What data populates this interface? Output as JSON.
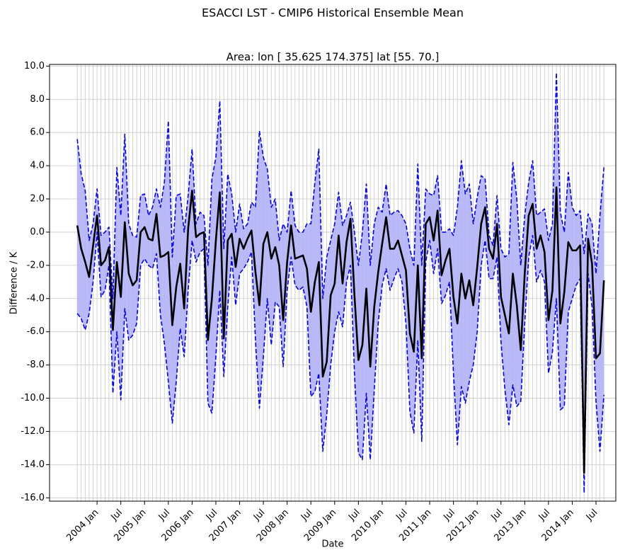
{
  "chart_data": {
    "type": "line",
    "title": "ESACCI LST - CMIP6 Historical Ensemble Mean",
    "subtitle": "Area: lon [ 35.625 174.375] lat [55. 70.]",
    "xlabel": "Date",
    "ylabel": "Difference / K",
    "x": [
      "2003-08",
      "2003-09",
      "2003-10",
      "2003-11",
      "2003-12",
      "2004-01",
      "2004-02",
      "2004-03",
      "2004-04",
      "2004-05",
      "2004-06",
      "2004-07",
      "2004-08",
      "2004-09",
      "2004-10",
      "2004-11",
      "2004-12",
      "2005-01",
      "2005-02",
      "2005-03",
      "2005-04",
      "2005-05",
      "2005-06",
      "2005-07",
      "2005-08",
      "2005-09",
      "2005-10",
      "2005-11",
      "2005-12",
      "2006-01",
      "2006-02",
      "2006-03",
      "2006-04",
      "2006-05",
      "2006-06",
      "2006-07",
      "2006-08",
      "2006-09",
      "2006-10",
      "2006-11",
      "2006-12",
      "2007-01",
      "2007-02",
      "2007-03",
      "2007-04",
      "2007-05",
      "2007-06",
      "2007-07",
      "2007-08",
      "2007-09",
      "2007-10",
      "2007-11",
      "2007-12",
      "2008-01",
      "2008-02",
      "2008-03",
      "2008-04",
      "2008-05",
      "2008-06",
      "2008-07",
      "2008-08",
      "2008-09",
      "2008-10",
      "2008-11",
      "2008-12",
      "2009-01",
      "2009-02",
      "2009-03",
      "2009-04",
      "2009-05",
      "2009-06",
      "2009-07",
      "2009-08",
      "2009-09",
      "2009-10",
      "2009-11",
      "2009-12",
      "2010-01",
      "2010-02",
      "2010-03",
      "2010-04",
      "2010-05",
      "2010-06",
      "2010-07",
      "2010-08",
      "2010-09",
      "2010-10",
      "2010-11",
      "2010-12",
      "2011-01",
      "2011-02",
      "2011-03",
      "2011-04",
      "2011-05",
      "2011-06",
      "2011-07",
      "2011-08",
      "2011-09",
      "2011-10",
      "2011-11",
      "2011-12",
      "2012-01",
      "2012-02",
      "2012-03",
      "2012-04",
      "2012-05",
      "2012-06",
      "2012-07",
      "2012-08",
      "2012-09",
      "2012-10",
      "2012-11",
      "2012-12",
      "2013-01",
      "2013-02",
      "2013-03",
      "2013-04",
      "2013-05",
      "2013-06",
      "2013-07",
      "2013-08",
      "2013-09",
      "2013-10",
      "2013-11",
      "2013-12",
      "2014-01",
      "2014-02",
      "2014-03",
      "2014-04",
      "2014-05",
      "2014-06",
      "2014-07",
      "2014-08",
      "2014-09"
    ],
    "xlim": [
      "2003-01",
      "2014-12"
    ],
    "xticks": [
      {
        "value": "2004-01",
        "label": "2004 Jan"
      },
      {
        "value": "2004-07",
        "label": "Jul"
      },
      {
        "value": "2005-01",
        "label": "2005 Jan"
      },
      {
        "value": "2005-07",
        "label": "Jul"
      },
      {
        "value": "2006-01",
        "label": "2006 Jan"
      },
      {
        "value": "2006-07",
        "label": "Jul"
      },
      {
        "value": "2007-01",
        "label": "2007 Jan"
      },
      {
        "value": "2007-07",
        "label": "Jul"
      },
      {
        "value": "2008-01",
        "label": "2008 Jan"
      },
      {
        "value": "2008-07",
        "label": "Jul"
      },
      {
        "value": "2009-01",
        "label": "2009 Jan"
      },
      {
        "value": "2009-07",
        "label": "Jul"
      },
      {
        "value": "2010-01",
        "label": "2010 Jan"
      },
      {
        "value": "2010-07",
        "label": "Jul"
      },
      {
        "value": "2011-01",
        "label": "2011 Jan"
      },
      {
        "value": "2011-07",
        "label": "Jul"
      },
      {
        "value": "2012-01",
        "label": "2012 Jan"
      },
      {
        "value": "2012-07",
        "label": "Jul"
      },
      {
        "value": "2013-01",
        "label": "2013 Jan"
      },
      {
        "value": "2013-07",
        "label": "Jul"
      },
      {
        "value": "2014-01",
        "label": "2014 Jan"
      },
      {
        "value": "2014-07",
        "label": "Jul"
      }
    ],
    "ylim": [
      -16.2,
      10.1
    ],
    "yticks": [
      {
        "value": 10,
        "label": "10.0"
      },
      {
        "value": 8,
        "label": "8.0"
      },
      {
        "value": 6,
        "label": "6.0"
      },
      {
        "value": 4,
        "label": "4.0"
      },
      {
        "value": 2,
        "label": "2.0"
      },
      {
        "value": 0,
        "label": "0.0"
      },
      {
        "value": -2,
        "label": "-2.0"
      },
      {
        "value": -4,
        "label": "-4.0"
      },
      {
        "value": -6,
        "label": "-6.0"
      },
      {
        "value": -8,
        "label": "-8.0"
      },
      {
        "value": -10,
        "label": "-10.0"
      },
      {
        "value": -12,
        "label": "-12.0"
      },
      {
        "value": -14,
        "label": "-14.0"
      },
      {
        "value": -16,
        "label": "-16.0"
      }
    ],
    "grid": true,
    "band_fill": "#b3b3f8",
    "series": [
      {
        "color": "#000000",
        "linestyle": "solid",
        "values": [
          0.4,
          -1.0,
          -1.8,
          -2.7,
          -0.8,
          1.0,
          -2.0,
          -1.7,
          -0.9,
          -5.9,
          -1.8,
          -3.9,
          0.6,
          -2.5,
          -3.2,
          -2.9,
          0.0,
          0.3,
          -0.4,
          -0.5,
          1.1,
          -1.5,
          -1.4,
          -1.2,
          -5.6,
          -3.3,
          -1.9,
          -4.6,
          0.2,
          2.5,
          -0.3,
          -0.1,
          0.0,
          -6.5,
          -4.0,
          -0.5,
          2.4,
          -6.4,
          -0.5,
          -0.1,
          -2.1,
          -0.4,
          -1.0,
          -0.4,
          0.1,
          -2.4,
          -4.4,
          -0.7,
          0.0,
          -1.6,
          -0.9,
          -2.0,
          -5.3,
          -1.8,
          0.4,
          -1.6,
          -1.5,
          -1.4,
          -2.2,
          -4.8,
          -3.0,
          -1.8,
          -8.7,
          -7.8,
          -3.8,
          -3.1,
          -0.2,
          -3.1,
          -0.6,
          0.8,
          -3.8,
          -7.7,
          -6.8,
          -3.4,
          -8.1,
          -4.5,
          -2.4,
          -0.7,
          0.9,
          -1.0,
          -1.0,
          -0.5,
          -1.4,
          -2.3,
          -6.1,
          -7.2,
          -2.0,
          -7.6,
          0.5,
          0.9,
          -0.5,
          1.3,
          -2.6,
          -1.7,
          -1.0,
          -3.9,
          -5.5,
          -2.5,
          -4.0,
          -2.9,
          -4.4,
          -2.1,
          0.5,
          1.5,
          -1.0,
          -1.6,
          0.5,
          -3.9,
          -5.0,
          -6.1,
          -2.5,
          -4.4,
          -7.1,
          -2.5,
          1.0,
          1.7,
          -1.0,
          -0.2,
          -1.2,
          -5.3,
          -3.5,
          2.7,
          -5.5,
          -3.6,
          -0.6,
          -1.1,
          -1.1,
          -0.8,
          -14.5,
          -0.4,
          -1.9,
          -7.6,
          -7.3,
          -2.9
        ]
      },
      {
        "color": "#0000ff",
        "linestyle": "dashed",
        "values": [
          5.6,
          3.5,
          2.5,
          -0.5,
          0.5,
          2.6,
          -0.2,
          0.0,
          0.3,
          -4.0,
          3.9,
          1.0,
          5.9,
          0.5,
          -0.2,
          -0.3,
          2.2,
          2.3,
          1.0,
          1.5,
          2.6,
          1.5,
          3.0,
          6.7,
          -1.5,
          2.2,
          2.3,
          0.0,
          2.2,
          5.0,
          0.5,
          1.2,
          1.0,
          -2.0,
          3.2,
          4.5,
          7.9,
          -1.0,
          3.5,
          2.3,
          0.0,
          1.7,
          0.2,
          0.5,
          1.8,
          1.5,
          6.1,
          4.5,
          3.8,
          1.5,
          2.0,
          -0.5,
          0.5,
          0.0,
          2.5,
          0.4,
          0.0,
          0.0,
          0.5,
          0.5,
          3.0,
          5.0,
          -4.0,
          -1.5,
          -0.5,
          0.5,
          2.4,
          0.4,
          1.0,
          1.8,
          0.0,
          -2.0,
          0.0,
          2.9,
          -2.0,
          0.5,
          1.5,
          1.2,
          2.9,
          1.0,
          1.2,
          1.3,
          1.0,
          0.5,
          -1.0,
          -2.0,
          4.1,
          -2.0,
          2.6,
          2.3,
          2.2,
          3.4,
          0.0,
          0.0,
          0.2,
          -0.2,
          1.5,
          4.3,
          2.3,
          2.9,
          0.5,
          2.1,
          3.4,
          3.2,
          -0.2,
          -0.8,
          2.2,
          -1.0,
          -1.5,
          -1.3,
          4.2,
          2.0,
          -2.0,
          1.0,
          3.0,
          4.3,
          1.0,
          1.2,
          1.4,
          -0.5,
          0.5,
          9.6,
          1.2,
          0.0,
          3.6,
          1.5,
          1.0,
          1.3,
          -1.3,
          1.1,
          0.5,
          -2.5,
          1.0,
          3.9
        ]
      },
      {
        "color": "#0000ff",
        "linestyle": "dashed",
        "values": [
          -4.9,
          -5.2,
          -5.9,
          -4.9,
          -3.0,
          0.0,
          -3.9,
          -3.5,
          -2.0,
          -9.7,
          -6.0,
          -10.1,
          -4.6,
          -6.5,
          -6.2,
          -5.5,
          -2.0,
          -1.6,
          -2.0,
          -2.2,
          -1.3,
          -5.0,
          -6.7,
          -9.0,
          -11.5,
          -9.0,
          -5.8,
          -7.5,
          -3.5,
          -0.5,
          -1.8,
          -1.2,
          -1.0,
          -10.3,
          -10.9,
          -7.5,
          -3.5,
          -8.7,
          -4.5,
          -1.5,
          -4.4,
          -2.5,
          -2.2,
          -1.8,
          -1.2,
          -6.5,
          -10.6,
          -7.5,
          -4.0,
          -6.8,
          -4.2,
          -4.5,
          -8.1,
          -3.5,
          -1.5,
          -3.2,
          -3.5,
          -3.3,
          -4.5,
          -9.9,
          -9.6,
          -8.5,
          -13.2,
          -11.0,
          -8.0,
          -6.0,
          -4.8,
          -5.7,
          -3.0,
          -2.0,
          -8.5,
          -13.3,
          -13.7,
          -9.7,
          -13.7,
          -9.5,
          -5.5,
          -3.2,
          -2.2,
          -3.5,
          -2.8,
          -2.2,
          -3.0,
          -5.5,
          -10.8,
          -12.1,
          -6.5,
          -12.6,
          -1.8,
          -0.5,
          -2.5,
          -1.0,
          -4.3,
          -3.8,
          -3.0,
          -8.5,
          -12.8,
          -9.3,
          -10.3,
          -9.0,
          -8.0,
          -6.0,
          -2.0,
          -0.5,
          -2.8,
          -2.8,
          -1.5,
          -6.6,
          -9.5,
          -11.6,
          -9.2,
          -10.5,
          -10.2,
          -5.5,
          -1.5,
          -0.2,
          -3.0,
          -2.3,
          -3.0,
          -8.5,
          -7.2,
          -4.0,
          -10.7,
          -10.5,
          -4.8,
          -4.0,
          -3.2,
          -2.8,
          -15.7,
          -2.5,
          -4.5,
          -10.2,
          -13.2,
          -9.8
        ]
      }
    ]
  }
}
